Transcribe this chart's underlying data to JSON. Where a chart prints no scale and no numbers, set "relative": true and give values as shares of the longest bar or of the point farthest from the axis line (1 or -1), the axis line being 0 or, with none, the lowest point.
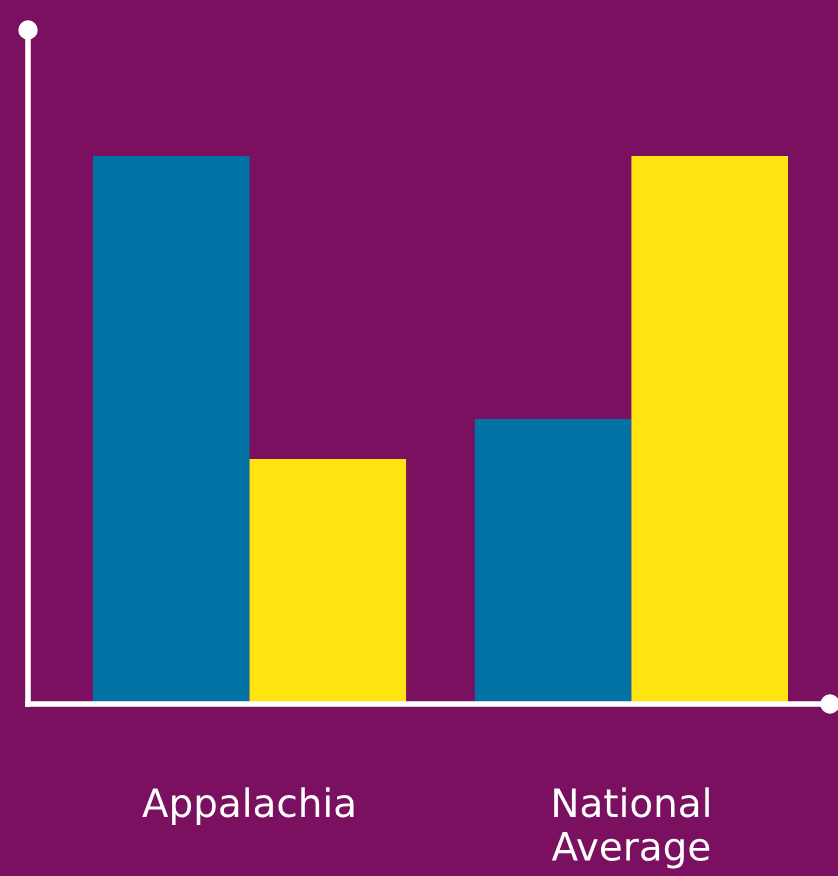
{
  "chart_data": {
    "type": "bar",
    "relative": true,
    "categories": [
      "Appalachia",
      "National\nAverage"
    ],
    "grid": false,
    "series": [
      {
        "color": "#0072a3",
        "values": [
          1,
          0.52
        ]
      },
      {
        "color": "#ffe411",
        "values": [
          0.447,
          1
        ]
      }
    ]
  }
}
